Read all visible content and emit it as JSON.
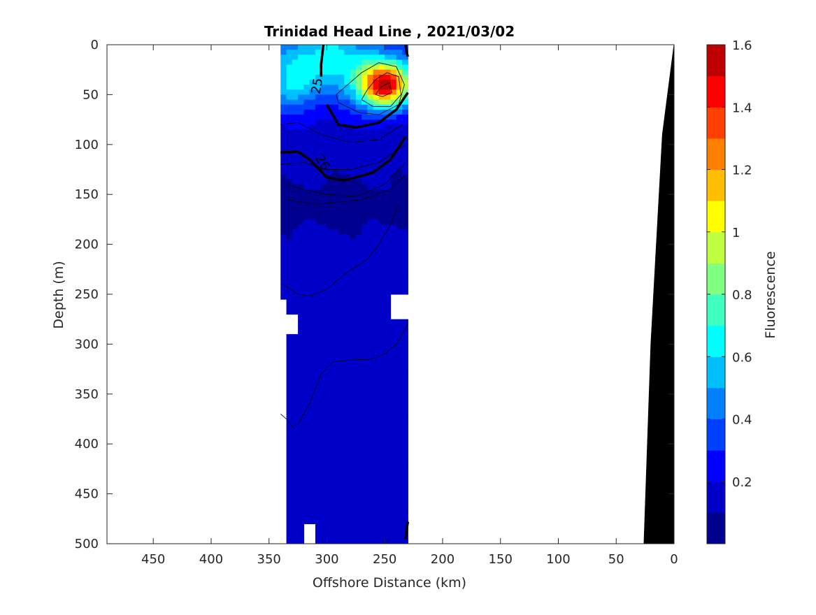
{
  "chart_data": {
    "type": "heatmap",
    "title": "Trinidad Head Line , 2021/03/02",
    "xlabel": "Offshore Distance (km)",
    "ylabel": "Depth (m)",
    "xlim": [
      490,
      0
    ],
    "ylim": [
      0,
      500
    ],
    "x_reversed": true,
    "y_reversed": true,
    "xticks": [
      450,
      400,
      350,
      300,
      250,
      200,
      150,
      100,
      50,
      0
    ],
    "yticks": [
      0,
      50,
      100,
      150,
      200,
      250,
      300,
      350,
      400,
      450,
      500
    ],
    "colorbar": {
      "label": "Fluorescence",
      "range": [
        0,
        1.6
      ],
      "ticks": [
        0.2,
        0.4,
        0.6,
        0.8,
        1,
        1.2,
        1.4,
        1.6
      ],
      "levels": [
        0,
        0.1,
        0.2,
        0.3,
        0.4,
        0.5,
        0.6,
        0.7,
        0.8,
        0.9,
        1.0,
        1.1,
        1.2,
        1.3,
        1.4,
        1.5,
        1.6
      ],
      "colors": [
        "#00008f",
        "#0000c8",
        "#0000ff",
        "#0040ff",
        "#0080ff",
        "#00bfff",
        "#00ffff",
        "#40ffbf",
        "#80ff80",
        "#bfff40",
        "#ffff00",
        "#ffbf00",
        "#ff8000",
        "#ff4000",
        "#ff0000",
        "#bf0000"
      ]
    },
    "sampled_x_range_km": [
      340,
      230
    ],
    "contour_labels": [
      {
        "text": "25",
        "x": 305,
        "y": 42
      },
      {
        "text": "26",
        "x": 307,
        "y": 120
      }
    ],
    "fluorescence_max": {
      "x": 250,
      "y": 40,
      "value": 1.5
    },
    "bottom_topography": [
      [
        0,
        0
      ],
      [
        10,
        90
      ],
      [
        20,
        300
      ],
      [
        26,
        500
      ]
    ],
    "grid": false
  }
}
